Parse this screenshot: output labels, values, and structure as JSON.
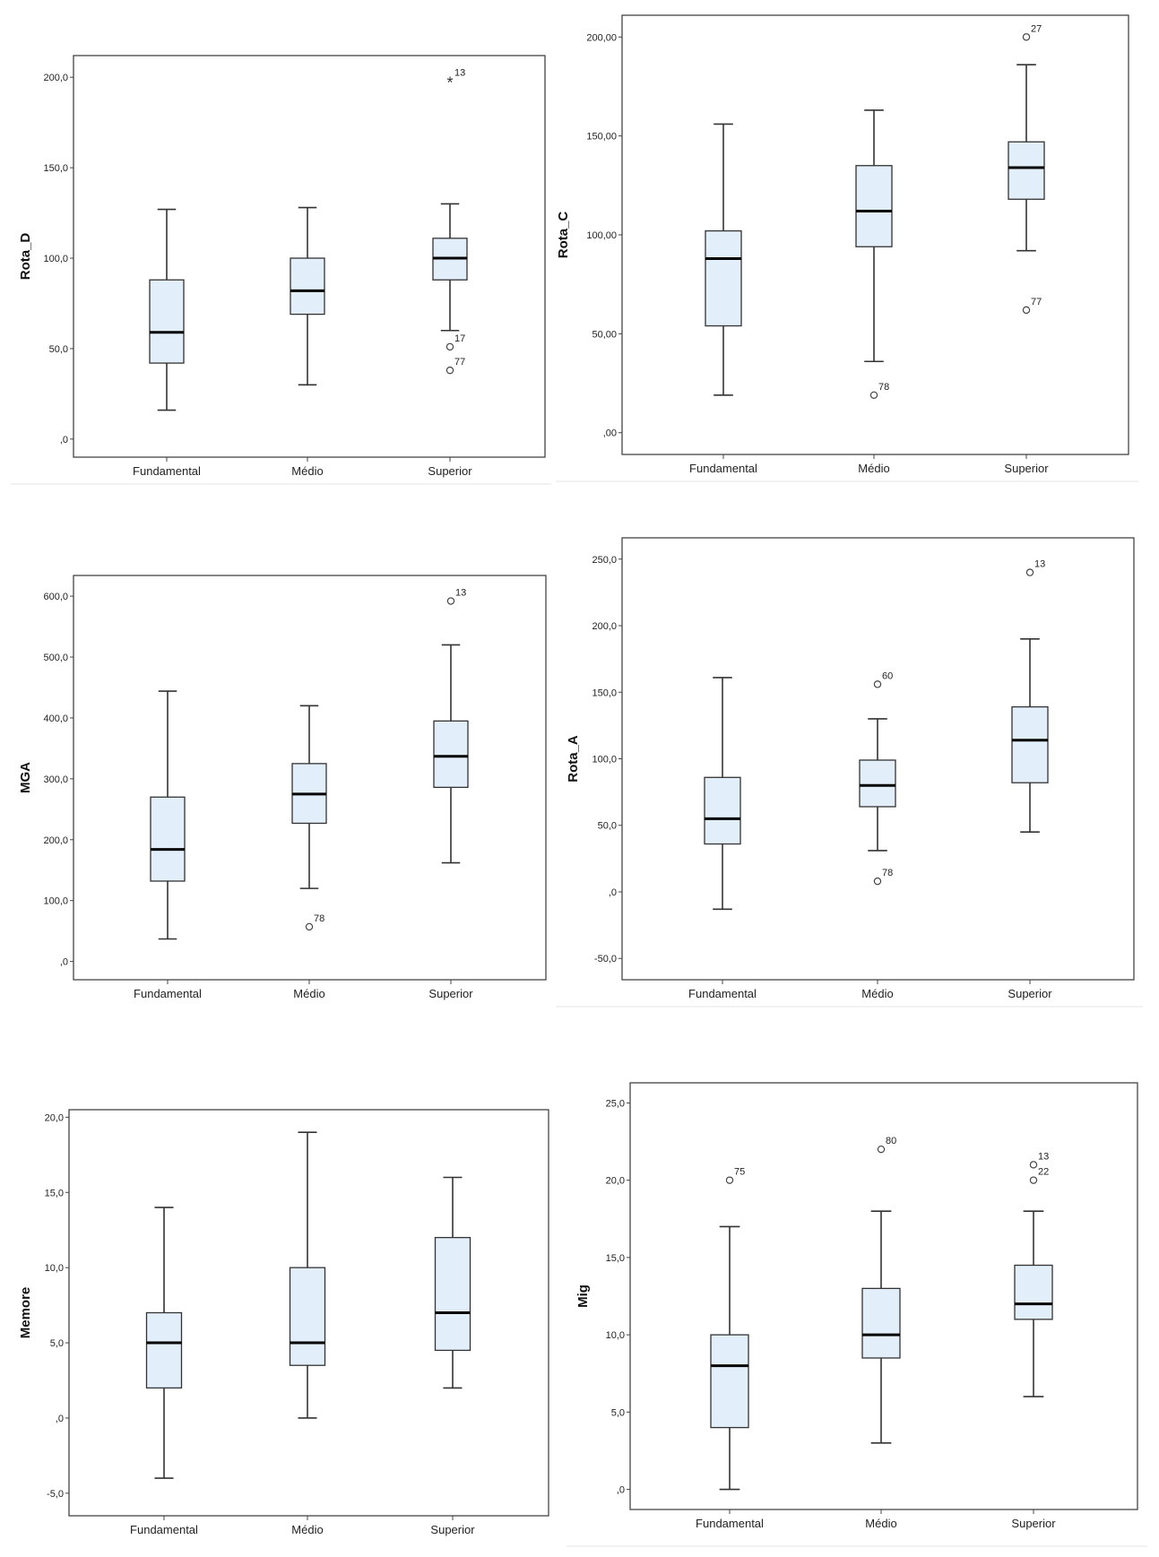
{
  "chart_data": [
    {
      "type": "boxplot",
      "ylabel": "Rota_D",
      "categories": [
        "Fundamental",
        "Médio",
        "Superior"
      ],
      "ylim": [
        -10,
        212
      ],
      "yticks": [
        0,
        50,
        100,
        150,
        200
      ],
      "ytick_labels": [
        ",0",
        "50,0",
        "100,0",
        "150,0",
        "200,0"
      ],
      "boxes": [
        {
          "whisker_low": 16,
          "q1": 42,
          "median": 59,
          "q3": 88,
          "whisker_high": 127,
          "outliers": []
        },
        {
          "whisker_low": 30,
          "q1": 69,
          "median": 82,
          "q3": 100,
          "whisker_high": 128,
          "outliers": []
        },
        {
          "whisker_low": 60,
          "q1": 88,
          "median": 100,
          "q3": 111,
          "whisker_high": 130,
          "outliers": [
            {
              "value": 198,
              "label": "13",
              "marker": "star"
            },
            {
              "value": 51,
              "label": "17",
              "marker": "circle"
            },
            {
              "value": 38,
              "label": "77",
              "marker": "circle"
            }
          ]
        }
      ]
    },
    {
      "type": "boxplot",
      "ylabel": "Rota_C",
      "categories": [
        "Fundamental",
        "Médio",
        "Superior"
      ],
      "ylim": [
        -11,
        211
      ],
      "yticks": [
        0,
        50,
        100,
        150,
        200
      ],
      "ytick_labels": [
        ",00",
        "50,00",
        "100,00",
        "150,00",
        "200,00"
      ],
      "boxes": [
        {
          "whisker_low": 19,
          "q1": 54,
          "median": 88,
          "q3": 102,
          "whisker_high": 156,
          "outliers": []
        },
        {
          "whisker_low": 36,
          "q1": 94,
          "median": 112,
          "q3": 135,
          "whisker_high": 163,
          "outliers": [
            {
              "value": 19,
              "label": "78",
              "marker": "circle"
            }
          ]
        },
        {
          "whisker_low": 92,
          "q1": 118,
          "median": 134,
          "q3": 147,
          "whisker_high": 186,
          "outliers": [
            {
              "value": 200,
              "label": "27",
              "marker": "circle"
            },
            {
              "value": 62,
              "label": "77",
              "marker": "circle"
            }
          ]
        }
      ]
    },
    {
      "type": "boxplot",
      "ylabel": "MGA",
      "categories": [
        "Fundamental",
        "Médio",
        "Superior"
      ],
      "ylim": [
        -30,
        634
      ],
      "yticks": [
        0,
        100,
        200,
        300,
        400,
        500,
        600
      ],
      "ytick_labels": [
        ",0",
        "100,0",
        "200,0",
        "300,0",
        "400,0",
        "500,0",
        "600,0"
      ],
      "boxes": [
        {
          "whisker_low": 37,
          "q1": 132,
          "median": 184,
          "q3": 270,
          "whisker_high": 444,
          "outliers": []
        },
        {
          "whisker_low": 120,
          "q1": 227,
          "median": 275,
          "q3": 325,
          "whisker_high": 420,
          "outliers": [
            {
              "value": 57,
              "label": "78",
              "marker": "circle"
            }
          ]
        },
        {
          "whisker_low": 162,
          "q1": 286,
          "median": 337,
          "q3": 395,
          "whisker_high": 520,
          "outliers": [
            {
              "value": 592,
              "label": "13",
              "marker": "circle"
            }
          ]
        }
      ]
    },
    {
      "type": "boxplot",
      "ylabel": "Rota_A",
      "categories": [
        "Fundamental",
        "Médio",
        "Superior"
      ],
      "ylim": [
        -66,
        266
      ],
      "yticks": [
        -50,
        0,
        50,
        100,
        150,
        200,
        250
      ],
      "ytick_labels": [
        "-50,0",
        ",0",
        "50,0",
        "100,0",
        "150,0",
        "200,0",
        "250,0"
      ],
      "boxes": [
        {
          "whisker_low": -13,
          "q1": 36,
          "median": 55,
          "q3": 86,
          "whisker_high": 161,
          "outliers": []
        },
        {
          "whisker_low": 31,
          "q1": 64,
          "median": 80,
          "q3": 99,
          "whisker_high": 130,
          "outliers": [
            {
              "value": 156,
              "label": "60",
              "marker": "circle"
            },
            {
              "value": 8,
              "label": "78",
              "marker": "circle"
            }
          ]
        },
        {
          "whisker_low": 45,
          "q1": 82,
          "median": 114,
          "q3": 139,
          "whisker_high": 190,
          "outliers": [
            {
              "value": 240,
              "label": "13",
              "marker": "circle"
            }
          ]
        }
      ]
    },
    {
      "type": "boxplot",
      "ylabel": "Memore",
      "categories": [
        "Fundamental",
        "Médio",
        "Superior"
      ],
      "ylim": [
        -6.5,
        20.5
      ],
      "yticks": [
        -5,
        0,
        5,
        10,
        15,
        20
      ],
      "ytick_labels": [
        "-5,0",
        ",0",
        "5,0",
        "10,0",
        "15,0",
        "20,0"
      ],
      "boxes": [
        {
          "whisker_low": -4,
          "q1": 2,
          "median": 5,
          "q3": 7,
          "whisker_high": 14,
          "outliers": []
        },
        {
          "whisker_low": 0,
          "q1": 3.5,
          "median": 5,
          "q3": 10,
          "whisker_high": 19,
          "outliers": []
        },
        {
          "whisker_low": 2,
          "q1": 4.5,
          "median": 7,
          "q3": 12,
          "whisker_high": 16,
          "outliers": []
        }
      ]
    },
    {
      "type": "boxplot",
      "ylabel": "Mig",
      "categories": [
        "Fundamental",
        "Médio",
        "Superior"
      ],
      "ylim": [
        -1.3,
        26.3
      ],
      "yticks": [
        0,
        5,
        10,
        15,
        20,
        25
      ],
      "ytick_labels": [
        ",0",
        "5,0",
        "10,0",
        "15,0",
        "20,0",
        "25,0"
      ],
      "boxes": [
        {
          "whisker_low": 0,
          "q1": 4,
          "median": 8,
          "q3": 10,
          "whisker_high": 17,
          "outliers": [
            {
              "value": 20,
              "label": "75",
              "marker": "circle"
            }
          ]
        },
        {
          "whisker_low": 3,
          "q1": 8.5,
          "median": 10,
          "q3": 13,
          "whisker_high": 18,
          "outliers": [
            {
              "value": 22,
              "label": "80",
              "marker": "circle"
            }
          ]
        },
        {
          "whisker_low": 6,
          "q1": 11,
          "median": 12,
          "q3": 14.5,
          "whisker_high": 18,
          "outliers": [
            {
              "value": 21,
              "label": "13",
              "marker": "circle"
            },
            {
              "value": 20,
              "label": "22",
              "marker": "circle"
            }
          ]
        }
      ]
    }
  ],
  "colors": {
    "box_fill": "#e3eefb",
    "stroke": "#333333",
    "frame": "#444444",
    "background": "#ffffff"
  }
}
